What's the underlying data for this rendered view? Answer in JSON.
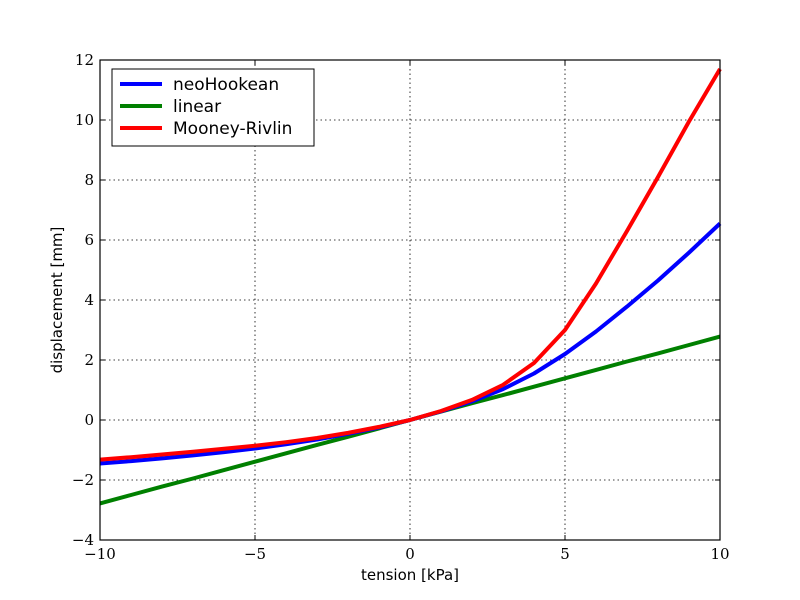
{
  "chart_data": {
    "type": "line",
    "title": "",
    "xlabel": "tension [kPa]",
    "ylabel": "displacement [mm]",
    "xlim": [
      -10,
      10
    ],
    "ylim": [
      -4,
      12
    ],
    "xticks": [
      -10,
      -5,
      0,
      5,
      10
    ],
    "xtick_labels": [
      "−10",
      "−5",
      "0",
      "5",
      "10"
    ],
    "yticks": [
      -4,
      -2,
      0,
      2,
      4,
      6,
      8,
      10,
      12
    ],
    "ytick_labels": [
      "−4",
      "−2",
      "0",
      "2",
      "4",
      "6",
      "8",
      "10",
      "12"
    ],
    "grid": true,
    "legend_position": "top-left",
    "x": [
      -10,
      -9,
      -8,
      -7,
      -6,
      -5,
      -4,
      -3,
      -2,
      -1,
      0,
      1,
      2,
      3,
      4,
      5,
      6,
      7,
      8,
      9,
      10
    ],
    "series": [
      {
        "name": "neoHookean",
        "color": "#0000ff",
        "values": [
          -1.45,
          -1.37,
          -1.28,
          -1.18,
          -1.07,
          -0.95,
          -0.81,
          -0.65,
          -0.46,
          -0.25,
          0.0,
          0.29,
          0.62,
          1.03,
          1.55,
          2.2,
          2.95,
          3.78,
          4.65,
          5.58,
          6.55
        ]
      },
      {
        "name": "linear",
        "color": "#008000",
        "values": [
          -2.78,
          -2.5,
          -2.22,
          -1.95,
          -1.67,
          -1.39,
          -1.11,
          -0.83,
          -0.56,
          -0.28,
          0.0,
          0.28,
          0.56,
          0.83,
          1.11,
          1.39,
          1.67,
          1.95,
          2.22,
          2.5,
          2.78
        ]
      },
      {
        "name": "Mooney-Rivlin",
        "color": "#ff0000",
        "values": [
          -1.32,
          -1.24,
          -1.15,
          -1.06,
          -0.96,
          -0.86,
          -0.74,
          -0.6,
          -0.43,
          -0.23,
          0.0,
          0.3,
          0.67,
          1.17,
          1.9,
          3.0,
          4.55,
          6.3,
          8.1,
          9.95,
          11.7
        ]
      }
    ]
  }
}
